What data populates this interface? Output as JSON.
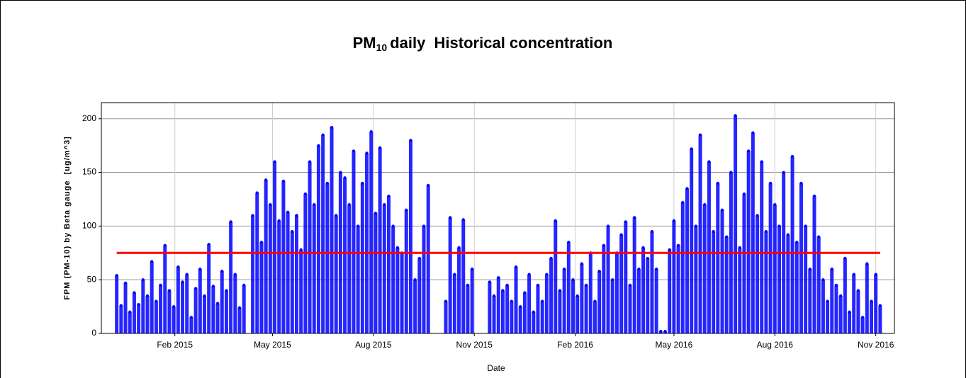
{
  "chart_data": {
    "type": "stem",
    "title_main": "PM",
    "title_sub": "10",
    "title_rest": "daily  Historical concentration",
    "ylabel": "FPM (PM-10) by Beta gauge  [ug/m^3]",
    "xlabel": "Date",
    "color": "#0000ff",
    "threshold": 75,
    "threshold_color": "#ff0000",
    "grid": true,
    "xlim": [
      -36,
      687
    ],
    "xticks": [
      {
        "value": 31,
        "label": "Feb 2015"
      },
      {
        "value": 120,
        "label": "May 2015"
      },
      {
        "value": 212,
        "label": "Aug 2015"
      },
      {
        "value": 304,
        "label": "Nov 2015"
      },
      {
        "value": 396,
        "label": "Feb 2016"
      },
      {
        "value": 486,
        "label": "May 2016"
      },
      {
        "value": 578,
        "label": "Aug 2016"
      },
      {
        "value": 670,
        "label": "Nov 2016"
      }
    ],
    "ylim": [
      0,
      215
    ],
    "yticks": [
      0,
      50,
      100,
      150,
      200
    ],
    "x": [
      -22,
      -18,
      -14,
      -10,
      -6,
      -2,
      2,
      6,
      10,
      14,
      18,
      22,
      26,
      30,
      34,
      38,
      42,
      46,
      50,
      54,
      58,
      62,
      66,
      70,
      74,
      78,
      82,
      86,
      90,
      94,
      102,
      106,
      110,
      114,
      118,
      122,
      126,
      130,
      134,
      138,
      142,
      146,
      150,
      154,
      158,
      162,
      166,
      170,
      174,
      178,
      182,
      186,
      190,
      194,
      198,
      202,
      206,
      210,
      214,
      218,
      222,
      226,
      230,
      234,
      238,
      242,
      246,
      250,
      254,
      258,
      262,
      278,
      282,
      286,
      290,
      294,
      298,
      302,
      318,
      322,
      326,
      330,
      334,
      338,
      342,
      346,
      350,
      354,
      358,
      362,
      366,
      370,
      374,
      378,
      382,
      386,
      390,
      394,
      398,
      402,
      406,
      410,
      414,
      418,
      422,
      426,
      430,
      434,
      438,
      442,
      446,
      450,
      454,
      458,
      462,
      466,
      470,
      474,
      478,
      482,
      486,
      490,
      494,
      498,
      502,
      506,
      510,
      514,
      518,
      522,
      526,
      530,
      534,
      538,
      542,
      546,
      550,
      554,
      558,
      562,
      566,
      570,
      574,
      578,
      582,
      586,
      590,
      594,
      598,
      602,
      606,
      610,
      614,
      618,
      622,
      626,
      630,
      634,
      638,
      642,
      646,
      650,
      654,
      658,
      662,
      666,
      670,
      674
    ],
    "values": [
      54,
      26,
      47,
      20,
      38,
      27,
      50,
      35,
      67,
      30,
      45,
      82,
      40,
      25,
      62,
      48,
      55,
      15,
      42,
      60,
      35,
      83,
      44,
      28,
      58,
      40,
      104,
      55,
      24,
      45,
      110,
      131,
      85,
      143,
      120,
      160,
      105,
      142,
      113,
      95,
      110,
      78,
      130,
      160,
      120,
      175,
      185,
      140,
      192,
      110,
      150,
      145,
      120,
      170,
      100,
      140,
      168,
      188,
      112,
      173,
      120,
      128,
      100,
      80,
      75,
      115,
      180,
      50,
      70,
      100,
      138,
      30,
      108,
      55,
      80,
      106,
      45,
      60,
      48,
      35,
      52,
      40,
      45,
      30,
      62,
      25,
      38,
      55,
      20,
      45,
      30,
      55,
      70,
      105,
      40,
      60,
      85,
      50,
      35,
      65,
      45,
      75,
      30,
      58,
      82,
      100,
      50,
      75,
      92,
      104,
      45,
      108,
      60,
      80,
      70,
      95,
      60,
      2,
      2,
      78,
      105,
      82,
      122,
      135,
      172,
      100,
      185,
      120,
      160,
      95,
      140,
      115,
      90,
      150,
      203,
      80,
      130,
      170,
      187,
      110,
      160,
      95,
      140,
      120,
      100,
      150,
      92,
      165,
      85,
      140,
      100,
      60,
      128,
      90,
      50,
      30,
      60,
      45,
      35,
      70,
      20,
      55,
      40,
      15,
      65,
      30,
      55,
      26
    ]
  }
}
